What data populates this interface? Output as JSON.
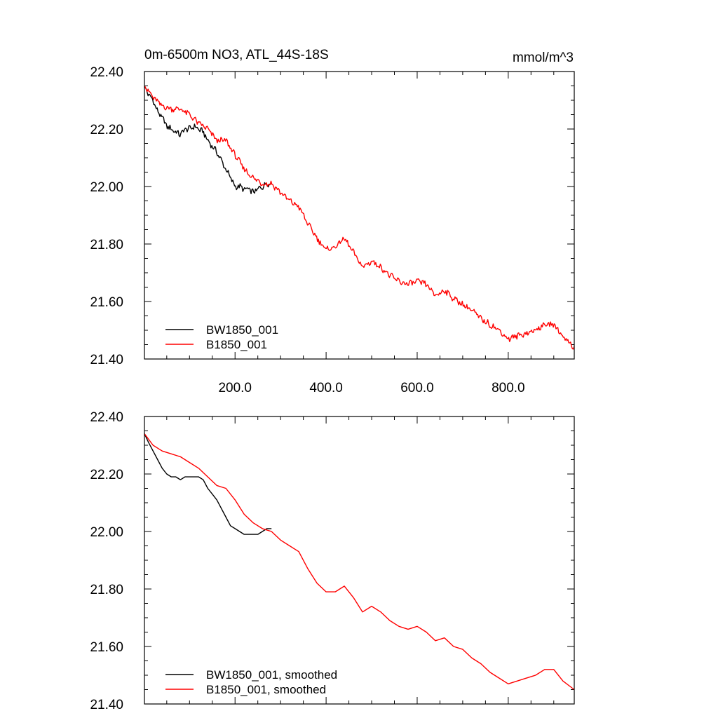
{
  "colors": {
    "series_1": "#000000",
    "series_2": "#ff0000",
    "axes": "#000000"
  },
  "chart_data": [
    {
      "type": "line",
      "title": "0m-6500m NO3, ATL_44S-18S",
      "units": "mmol/m^3",
      "xlim": [
        1,
        945
      ],
      "ylim": [
        21.4,
        22.4
      ],
      "x_ticks": [
        200.0,
        400.0,
        600.0,
        800.0
      ],
      "x_tick_labels": [
        "200.0",
        "400.0",
        "600.0",
        "800.0"
      ],
      "y_ticks": [
        21.4,
        21.6,
        21.8,
        22.0,
        22.2,
        22.4
      ],
      "y_tick_labels": [
        "21.40",
        "21.60",
        "21.80",
        "22.00",
        "22.20",
        "22.40"
      ],
      "legend_position": "bottom-left",
      "noisy": true,
      "series": [
        {
          "name": "BW1850_001",
          "color": "#000000",
          "x": [
            1,
            10,
            20,
            30,
            40,
            50,
            60,
            70,
            80,
            90,
            100,
            110,
            120,
            130,
            140,
            150,
            160,
            170,
            180,
            190,
            200,
            210,
            220,
            230,
            240,
            250,
            260,
            270,
            280
          ],
          "y": [
            22.35,
            22.32,
            22.3,
            22.26,
            22.24,
            22.21,
            22.2,
            22.19,
            22.18,
            22.2,
            22.2,
            22.21,
            22.2,
            22.19,
            22.16,
            22.14,
            22.12,
            22.09,
            22.06,
            22.03,
            22.0,
            22.0,
            21.99,
            21.99,
            21.98,
            21.99,
            22.0,
            22.01,
            22.01
          ]
        },
        {
          "name": "B1850_001",
          "color": "#ff0000",
          "x": [
            1,
            20,
            40,
            60,
            80,
            100,
            120,
            140,
            160,
            180,
            200,
            220,
            240,
            260,
            280,
            300,
            320,
            340,
            360,
            380,
            400,
            420,
            440,
            460,
            480,
            500,
            520,
            540,
            560,
            580,
            600,
            620,
            640,
            660,
            680,
            700,
            720,
            740,
            760,
            780,
            800,
            820,
            840,
            860,
            880,
            900,
            920,
            945
          ],
          "y": [
            22.35,
            22.31,
            22.28,
            22.27,
            22.27,
            22.25,
            22.22,
            22.2,
            22.16,
            22.16,
            22.11,
            22.06,
            22.03,
            22.01,
            22.01,
            21.98,
            21.95,
            21.93,
            21.87,
            21.82,
            21.78,
            21.79,
            21.82,
            21.77,
            21.72,
            21.74,
            21.72,
            21.69,
            21.67,
            21.66,
            21.67,
            21.66,
            21.62,
            21.64,
            21.61,
            21.59,
            21.57,
            21.54,
            21.52,
            21.5,
            21.47,
            21.48,
            21.49,
            21.5,
            21.52,
            21.52,
            21.48,
            21.44
          ]
        }
      ]
    },
    {
      "type": "line",
      "xlim": [
        1,
        945
      ],
      "ylim": [
        21.4,
        22.4
      ],
      "y_ticks": [
        21.4,
        21.6,
        21.8,
        22.0,
        22.2,
        22.4
      ],
      "y_tick_labels": [
        "21.40",
        "21.60",
        "21.80",
        "22.00",
        "22.20",
        "22.40"
      ],
      "legend_position": "bottom-left",
      "noisy": false,
      "series": [
        {
          "name": "BW1850_001, smoothed",
          "color": "#000000",
          "x": [
            1,
            10,
            20,
            30,
            40,
            50,
            60,
            70,
            80,
            90,
            100,
            110,
            120,
            130,
            140,
            150,
            160,
            170,
            180,
            190,
            200,
            210,
            220,
            230,
            240,
            250,
            260,
            270,
            280
          ],
          "y": [
            22.34,
            22.31,
            22.28,
            22.25,
            22.22,
            22.2,
            22.19,
            22.19,
            22.18,
            22.19,
            22.19,
            22.19,
            22.19,
            22.18,
            22.15,
            22.13,
            22.11,
            22.08,
            22.05,
            22.02,
            22.01,
            22.0,
            21.99,
            21.99,
            21.99,
            21.99,
            22.0,
            22.01,
            22.01
          ]
        },
        {
          "name": "B1850_001, smoothed",
          "color": "#ff0000",
          "x": [
            1,
            20,
            40,
            60,
            80,
            100,
            120,
            140,
            160,
            180,
            200,
            220,
            240,
            260,
            280,
            300,
            320,
            340,
            360,
            380,
            400,
            420,
            440,
            460,
            480,
            500,
            520,
            540,
            560,
            580,
            600,
            620,
            640,
            660,
            680,
            700,
            720,
            740,
            760,
            780,
            800,
            820,
            840,
            860,
            880,
            900,
            920,
            945
          ],
          "y": [
            22.34,
            22.3,
            22.28,
            22.27,
            22.26,
            22.24,
            22.22,
            22.19,
            22.16,
            22.15,
            22.11,
            22.06,
            22.03,
            22.01,
            22.0,
            21.97,
            21.95,
            21.93,
            21.87,
            21.82,
            21.79,
            21.79,
            21.81,
            21.77,
            21.72,
            21.74,
            21.72,
            21.69,
            21.67,
            21.66,
            21.67,
            21.65,
            21.62,
            21.63,
            21.6,
            21.59,
            21.56,
            21.54,
            21.51,
            21.49,
            21.47,
            21.48,
            21.49,
            21.5,
            21.52,
            21.52,
            21.48,
            21.45
          ]
        }
      ]
    }
  ]
}
